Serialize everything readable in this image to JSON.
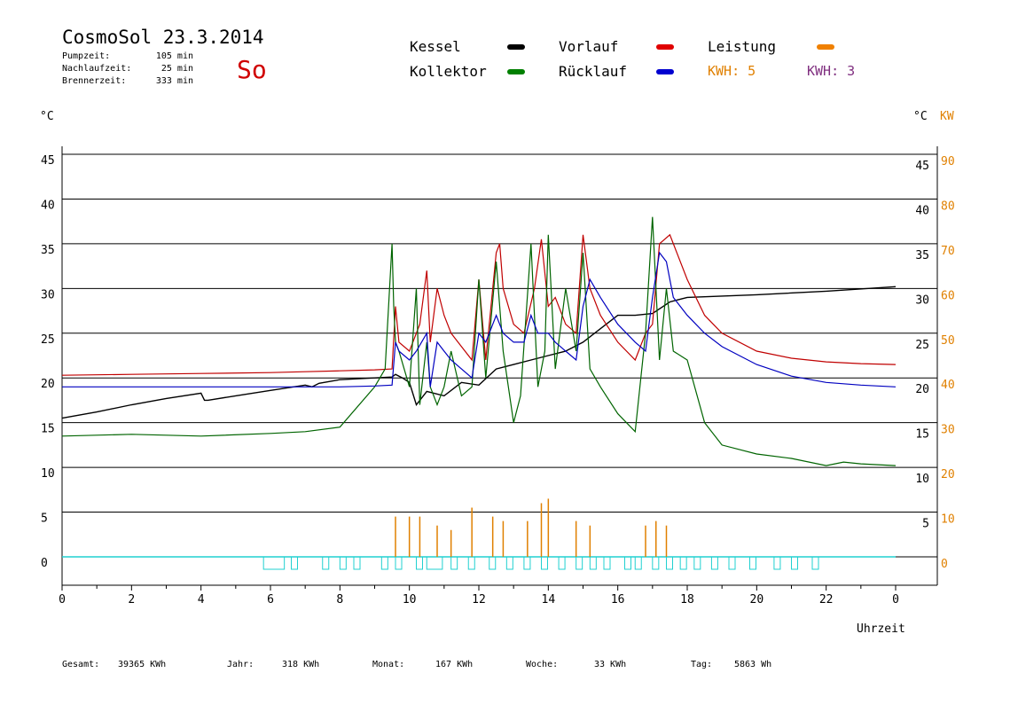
{
  "header": {
    "title": "CosmoSol 23.3.2014",
    "day": "So",
    "info": [
      {
        "label": "Pumpzeit:",
        "value": "105 min"
      },
      {
        "label": "Nachlaufzeit:",
        "value": "25 min"
      },
      {
        "label": "Brennerzeit:",
        "value": "333 min"
      }
    ]
  },
  "legend": {
    "items": [
      {
        "label": "Kessel",
        "color": "#000000"
      },
      {
        "label": "Vorlauf",
        "color": "#e00000"
      },
      {
        "label": "Leistung",
        "color": "#f08000"
      },
      {
        "label": "Kollektor",
        "color": "#008000"
      },
      {
        "label": "Rücklauf",
        "color": "#0000d0"
      }
    ],
    "kwh_left_label": "KWH:",
    "kwh_left_value": "5",
    "kwh_left_color": "#e08000",
    "kwh_right_label": "KWH:",
    "kwh_right_value": "3",
    "kwh_right_color": "#803080"
  },
  "axes": {
    "left_unit": "°C",
    "right_unit_c": "°C",
    "right_unit_kw": "KW",
    "x_label": "Uhrzeit",
    "kw_color": "#e08000"
  },
  "footer": {
    "gesamt_label": "Gesamt:",
    "gesamt_value": "39365 KWh",
    "jahr_label": "Jahr:",
    "jahr_value": "318 KWh",
    "monat_label": "Monat:",
    "monat_value": "167 KWh",
    "woche_label": "Woche:",
    "woche_value": "33 KWh",
    "tag_label": "Tag:",
    "tag_value": "5863 Wh"
  },
  "chart_data": {
    "type": "line",
    "xlabel": "Uhrzeit",
    "ylabel": "°C",
    "xlim": [
      0,
      24
    ],
    "ylim": [
      0,
      45
    ],
    "y2lim": [
      0,
      90
    ],
    "y2label": "KW",
    "x_ticks": [
      "0",
      "2",
      "4",
      "6",
      "8",
      "10",
      "12",
      "14",
      "16",
      "18",
      "20",
      "22",
      "0"
    ],
    "y_ticks_left": [
      "0",
      "5",
      "10",
      "15",
      "20",
      "25",
      "30",
      "35",
      "40",
      "45"
    ],
    "y_ticks_right_c": [
      "5",
      "10",
      "15",
      "20",
      "25",
      "30",
      "35",
      "40",
      "45"
    ],
    "y_ticks_right_kw": [
      "0",
      "10",
      "20",
      "30",
      "40",
      "50",
      "60",
      "70",
      "80",
      "90"
    ],
    "grid": true,
    "series": [
      {
        "name": "Kessel",
        "color": "#000000",
        "x": [
          0,
          1,
          2,
          3,
          4,
          4.1,
          4.2,
          5,
          6,
          7,
          7.2,
          7.4,
          8,
          9,
          9.5,
          9.6,
          9.8,
          10,
          10.2,
          10.5,
          11,
          11.5,
          12,
          12.5,
          13,
          13.5,
          14,
          14.5,
          15,
          15.5,
          16,
          16.5,
          17,
          17.5,
          18,
          20,
          22,
          24
        ],
        "y": [
          15.5,
          16.2,
          17,
          17.7,
          18.3,
          17.5,
          17.5,
          18,
          18.6,
          19.2,
          19,
          19.4,
          19.8,
          20,
          20.1,
          20.4,
          20,
          19.5,
          17,
          18.5,
          18,
          19.5,
          19.2,
          21,
          21.5,
          22,
          22.5,
          23,
          24,
          25.5,
          27,
          27,
          27.2,
          28.5,
          29,
          29.3,
          29.7,
          30.2
        ]
      },
      {
        "name": "Vorlauf",
        "color": "#c00000",
        "x": [
          0,
          2,
          4,
          6,
          7,
          8,
          9,
          9.5,
          9.6,
          9.7,
          10,
          10.3,
          10.5,
          10.6,
          10.8,
          11,
          11.2,
          11.5,
          11.8,
          12,
          12.2,
          12.5,
          12.6,
          12.7,
          13,
          13.3,
          13.6,
          13.8,
          14,
          14.2,
          14.5,
          14.8,
          15,
          15.2,
          15.5,
          16,
          16.5,
          16.8,
          17,
          17.2,
          17.5,
          18,
          18.5,
          19,
          20,
          21,
          22,
          23,
          24
        ],
        "y": [
          20.3,
          20.4,
          20.5,
          20.6,
          20.7,
          20.8,
          20.9,
          21,
          28,
          24,
          23,
          26,
          32,
          24,
          30,
          27,
          25,
          23.5,
          22,
          31,
          22,
          34,
          35,
          30,
          26,
          25,
          30,
          35.5,
          28,
          29,
          26,
          25,
          36,
          30,
          27,
          24,
          22,
          25,
          26,
          35,
          36,
          31,
          27,
          25,
          23,
          22.2,
          21.8,
          21.6,
          21.5
        ]
      },
      {
        "name": "Kollektor",
        "color": "#006400",
        "x": [
          0,
          2,
          4,
          6,
          7,
          8,
          9,
          9.3,
          9.5,
          9.55,
          9.6,
          9.7,
          10,
          10.2,
          10.3,
          10.5,
          10.6,
          10.8,
          11,
          11.2,
          11.5,
          11.8,
          12,
          12.2,
          12.5,
          12.7,
          13,
          13.2,
          13.5,
          13.7,
          13.9,
          14,
          14.2,
          14.5,
          14.8,
          15,
          15.2,
          15.5,
          16,
          16.5,
          16.8,
          17,
          17.2,
          17.4,
          17.6,
          18,
          18.5,
          19,
          20,
          21,
          22,
          22.5,
          23,
          24
        ],
        "y": [
          13.5,
          13.7,
          13.5,
          13.8,
          14,
          14.5,
          19,
          21,
          35,
          28,
          24,
          23,
          19,
          30,
          17,
          24,
          19,
          17,
          19,
          23,
          18,
          19,
          31,
          20,
          33,
          23,
          15,
          18,
          35,
          19,
          23,
          36,
          21,
          30,
          23,
          34,
          21,
          19,
          16,
          14,
          25,
          38,
          22,
          30,
          23,
          22,
          15,
          12.5,
          11.5,
          11,
          10.2,
          10.6,
          10.4,
          10.2
        ]
      },
      {
        "name": "Rücklauf",
        "color": "#0000c0",
        "x": [
          0,
          2,
          4,
          6,
          8,
          9,
          9.5,
          9.6,
          9.7,
          10,
          10.2,
          10.5,
          10.6,
          10.8,
          11,
          11.2,
          11.5,
          11.8,
          12,
          12.2,
          12.5,
          12.7,
          13,
          13.3,
          13.5,
          13.7,
          14,
          14.2,
          14.5,
          14.8,
          15,
          15.2,
          15.5,
          16,
          16.5,
          16.8,
          17,
          17.2,
          17.4,
          17.6,
          18,
          18.5,
          19,
          20,
          21,
          22,
          23,
          24
        ],
        "y": [
          19,
          19,
          19,
          19,
          19,
          19.1,
          19.2,
          24,
          23,
          22,
          23,
          25,
          19,
          24,
          23,
          22,
          21,
          20,
          25,
          24,
          27,
          25,
          24,
          24,
          27,
          25,
          25,
          24,
          23,
          22,
          28,
          31,
          29,
          26,
          24,
          23,
          29,
          34,
          33,
          29,
          27,
          25,
          23.5,
          21.5,
          20.2,
          19.5,
          19.2,
          19
        ]
      },
      {
        "name": "Leistung",
        "color": "#e08000",
        "axis": "right",
        "x": [
          9.6,
          10,
          10.3,
          10.8,
          11.2,
          11.8,
          12.4,
          12.7,
          13.4,
          13.8,
          14,
          14.8,
          15.2,
          16.8,
          17.1,
          17.4
        ],
        "y": [
          9,
          9,
          9,
          7,
          6,
          11,
          9,
          8,
          8,
          12,
          13,
          8,
          7,
          7,
          8,
          7
        ]
      }
    ],
    "cycles": {
      "color": "#20d0d0",
      "baseline": 0,
      "starts": [
        5.8,
        6.6,
        7.5,
        8,
        8.4,
        9.2,
        9.6,
        10.2,
        10.5,
        11.2,
        11.7,
        12.3,
        12.8,
        13.3,
        13.8,
        14.3,
        14.8,
        15.2,
        15.6,
        16.2,
        16.5,
        17.0,
        17.4,
        17.8,
        18.2,
        18.7,
        19.2,
        19.8,
        20.5,
        21.0,
        21.6
      ]
    }
  }
}
